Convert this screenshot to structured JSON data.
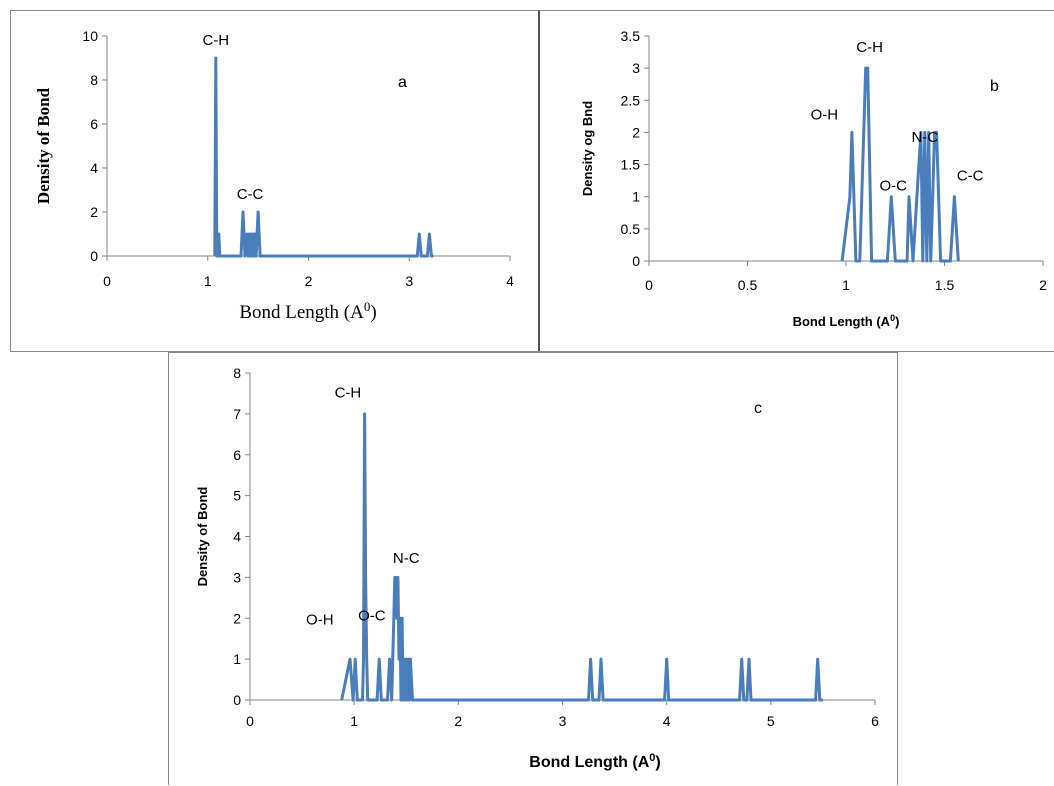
{
  "chart_data": [
    {
      "panel": "a",
      "type": "line",
      "panel_letter": "a",
      "xlabel": "Bond Length (A",
      "xlabel_sup": "0",
      "xlabel_tail": ")",
      "ylabel": "Density of Bond",
      "xlim": [
        0,
        4
      ],
      "ylim": [
        0,
        10
      ],
      "xticks": [
        "0",
        "1",
        "2",
        "3",
        "4"
      ],
      "yticks": [
        "0",
        "2",
        "4",
        "6",
        "8",
        "10"
      ],
      "color": "#4a7ebb",
      "annotations": [
        {
          "text": "C-H",
          "x": 1.08,
          "y": 9.6
        },
        {
          "text": "C-C",
          "x": 1.42,
          "y": 2.6
        }
      ],
      "x": [
        1.07,
        1.08,
        1.09,
        1.1,
        1.11,
        1.12,
        1.33,
        1.35,
        1.37,
        1.39,
        1.4,
        1.41,
        1.42,
        1.43,
        1.44,
        1.45,
        1.46,
        1.47,
        1.48,
        1.5,
        1.52,
        1.53,
        3.08,
        3.1,
        3.12,
        3.18,
        3.2,
        3.22,
        3.24
      ],
      "y": [
        0,
        9,
        0,
        0,
        1,
        0,
        0,
        2,
        0,
        1,
        0,
        1,
        0,
        1,
        0,
        1,
        0,
        1,
        0,
        2,
        0,
        0,
        0,
        1,
        0,
        0,
        1,
        0,
        0
      ]
    },
    {
      "panel": "b",
      "type": "line",
      "panel_letter": "b",
      "xlabel": "Bond Length (A",
      "xlabel_sup": "0",
      "xlabel_tail": ")",
      "ylabel": "Density og Bnd",
      "xlim": [
        0,
        2
      ],
      "ylim": [
        0,
        3.5
      ],
      "xticks": [
        "0",
        "0.5",
        "1",
        "1.5",
        "2"
      ],
      "yticks": [
        "0",
        "0.5",
        "1",
        "1.5",
        "2",
        "2.5",
        "3",
        "3.5"
      ],
      "color": "#4a7ebb",
      "annotations": [
        {
          "text": "O-H",
          "x": 0.89,
          "y": 2.2
        },
        {
          "text": "C-H",
          "x": 1.12,
          "y": 3.25
        },
        {
          "text": "N-C",
          "x": 1.4,
          "y": 1.85
        },
        {
          "text": "O-C",
          "x": 1.24,
          "y": 1.1
        },
        {
          "text": "C-C",
          "x": 1.63,
          "y": 1.25
        }
      ],
      "x": [
        0.98,
        1.02,
        1.03,
        1.05,
        1.07,
        1.1,
        1.11,
        1.13,
        1.15,
        1.21,
        1.23,
        1.25,
        1.31,
        1.32,
        1.34,
        1.36,
        1.38,
        1.39,
        1.4,
        1.41,
        1.42,
        1.43,
        1.44,
        1.45,
        1.46,
        1.48,
        1.53,
        1.55,
        1.57
      ],
      "y": [
        0,
        1,
        2,
        0,
        0,
        3,
        3,
        0,
        0,
        0,
        1,
        0,
        0,
        1,
        0,
        1,
        2,
        0,
        2,
        0,
        2,
        0,
        1,
        2,
        2,
        0,
        0,
        1,
        0
      ]
    },
    {
      "panel": "c",
      "type": "line",
      "panel_letter": "c",
      "xlabel": "Bond Length (A",
      "xlabel_sup": "0",
      "xlabel_tail": ")",
      "ylabel": "Density of Bond",
      "xlim": [
        0,
        6
      ],
      "ylim": [
        0,
        8
      ],
      "xticks": [
        "0",
        "1",
        "2",
        "3",
        "4",
        "5",
        "6"
      ],
      "yticks": [
        "0",
        "1",
        "2",
        "3",
        "4",
        "5",
        "6",
        "7",
        "8"
      ],
      "color": "#4a7ebb",
      "annotations": [
        {
          "text": "C-H",
          "x": 0.94,
          "y": 7.4
        },
        {
          "text": "O-H",
          "x": 0.67,
          "y": 1.85
        },
        {
          "text": "O-C",
          "x": 1.17,
          "y": 1.95
        },
        {
          "text": "N-C",
          "x": 1.5,
          "y": 3.35
        }
      ],
      "x": [
        0.88,
        0.96,
        0.99,
        1.01,
        1.03,
        1.08,
        1.09,
        1.1,
        1.11,
        1.12,
        1.13,
        1.22,
        1.24,
        1.26,
        1.32,
        1.34,
        1.36,
        1.38,
        1.39,
        1.4,
        1.41,
        1.42,
        1.43,
        1.44,
        1.45,
        1.46,
        1.47,
        1.48,
        1.49,
        1.5,
        1.51,
        1.52,
        1.53,
        1.54,
        1.56,
        3.25,
        3.27,
        3.29,
        3.35,
        3.37,
        3.39,
        3.98,
        4.0,
        4.02,
        4.7,
        4.72,
        4.74,
        4.77,
        4.79,
        4.81,
        5.43,
        5.45,
        5.47,
        5.5
      ],
      "y": [
        0,
        1,
        0,
        1,
        0,
        0,
        1,
        7,
        3,
        1,
        0,
        0,
        1,
        0,
        0,
        1,
        0,
        2,
        3,
        3,
        2,
        3,
        1,
        2,
        0,
        2,
        0,
        1,
        0,
        1,
        0,
        1,
        0,
        1,
        0,
        0,
        1,
        0,
        0,
        1,
        0,
        0,
        1,
        0,
        0,
        1,
        0,
        0,
        1,
        0,
        0,
        1,
        0,
        0
      ]
    }
  ]
}
